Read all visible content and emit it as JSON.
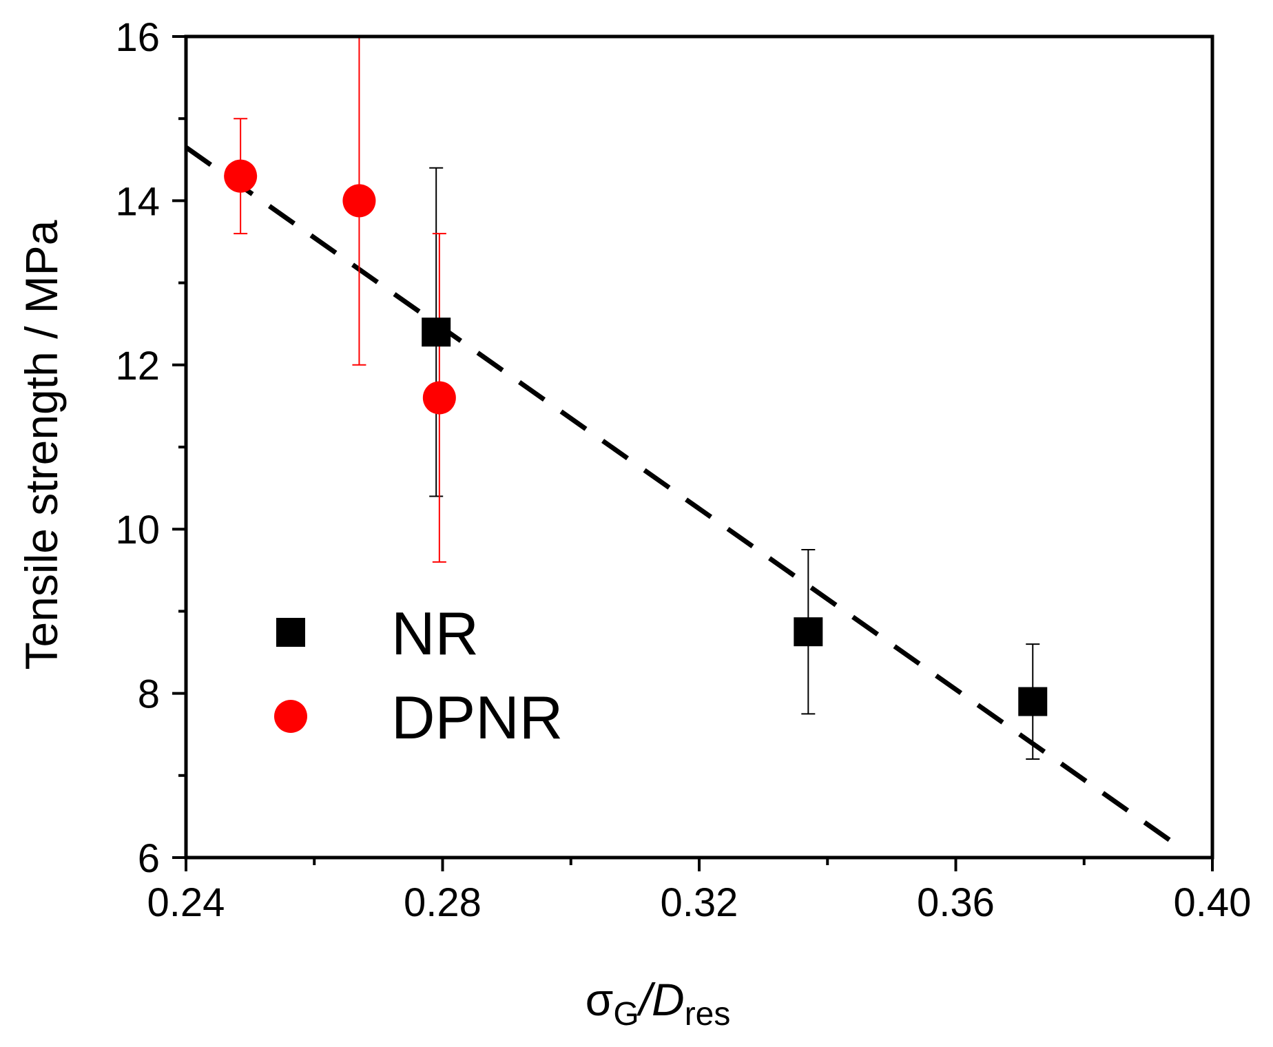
{
  "chart_data": {
    "type": "scatter",
    "title": "",
    "xlabel": {
      "main": "σ",
      "sub1": "G",
      "mid": "/D",
      "sub2": "res"
    },
    "ylabel": "Tensile strength / MPa",
    "xlim": [
      0.24,
      0.4
    ],
    "ylim": [
      6,
      16
    ],
    "x_ticks": [
      "0.24",
      "0.28",
      "0.32",
      "0.36",
      "0.40"
    ],
    "y_ticks": [
      "6",
      "8",
      "10",
      "12",
      "14",
      "16"
    ],
    "series": [
      {
        "name": "NR",
        "marker": "square",
        "color": "#000000",
        "points": [
          {
            "x": 0.279,
            "y": 12.4,
            "err": 2.0
          },
          {
            "x": 0.337,
            "y": 8.75,
            "err": 1.0
          },
          {
            "x": 0.372,
            "y": 7.9,
            "err": 0.7
          }
        ]
      },
      {
        "name": "DPNR",
        "marker": "circle",
        "color": "#ff0000",
        "points": [
          {
            "x": 0.2485,
            "y": 14.3,
            "err": 0.7
          },
          {
            "x": 0.267,
            "y": 14.0,
            "err": 2.0
          },
          {
            "x": 0.2795,
            "y": 11.6,
            "err": 2.0
          }
        ]
      }
    ],
    "fit_line": {
      "style": "dashed",
      "color": "#000000",
      "from": [
        0.24,
        14.65
      ],
      "to": [
        0.3945,
        6.15
      ]
    },
    "legend": {
      "placement": "lower-left",
      "entries": [
        "NR",
        "DPNR"
      ]
    }
  }
}
